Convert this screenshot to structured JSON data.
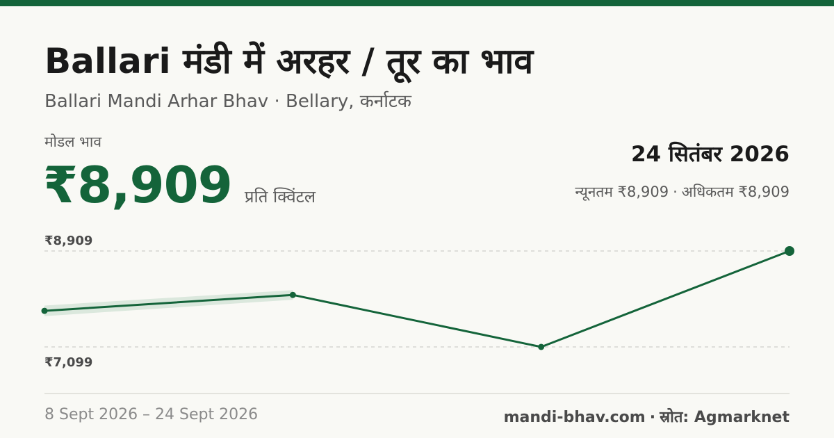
{
  "header": {
    "title": "Ballari मंडी में अरहर / तूर का भाव",
    "subtitle": "Ballari Mandi Arhar Bhav · Bellary, कर्नाटक"
  },
  "price": {
    "label": "मोडल भाव",
    "value": "₹8,909",
    "unit": "प्रति क्विंटल"
  },
  "summary": {
    "date": "24 सितंबर 2026",
    "min": "न्यूनतम ₹8,909",
    "separator": "·",
    "max": "अधिकतम ₹8,909"
  },
  "footer": {
    "period": "8 Sept 2026 – 24 Sept 2026",
    "site": "mandi-bhav.com",
    "separator": "·",
    "source": "स्रोत: Agmarknet"
  },
  "colors": {
    "accent": "#14643a",
    "band": "#d7e5da"
  },
  "chart_data": {
    "type": "line",
    "series": [
      {
        "values": [
          7780,
          8080,
          7099,
          8909
        ]
      }
    ],
    "range_band": [
      [
        7680,
        7880
      ],
      [
        7990,
        8170
      ]
    ],
    "y_tick_labels": [
      "₹8,909",
      "₹7,099"
    ],
    "ylim": [
      7099,
      8909
    ],
    "grid": true
  }
}
